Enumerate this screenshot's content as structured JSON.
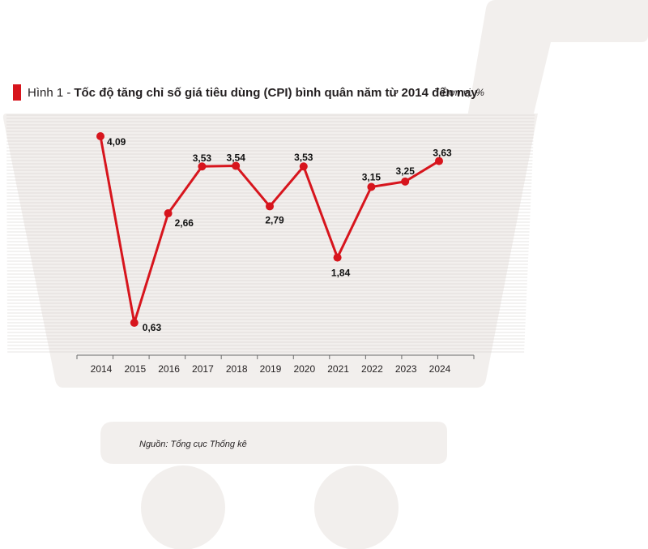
{
  "header": {
    "figure_label": "Hình 1 -",
    "title": "Tốc độ tăng chỉ số giá tiêu dùng (CPI) bình quân năm từ 2014 đến nay",
    "unit": "Đơn vị: %"
  },
  "source": "Nguồn: Tổng cục Thống kê",
  "colors": {
    "line": "#d7151d",
    "cart": "#f2efed",
    "grid": "#cfcac7",
    "axis": "#6b6b6b"
  },
  "chart_data": {
    "type": "line",
    "title": "Tốc độ tăng chỉ số giá tiêu dùng (CPI) bình quân năm từ 2014 đến nay",
    "xlabel": "",
    "ylabel": "",
    "categories": [
      "2014",
      "2015",
      "2016",
      "2017",
      "2018",
      "2019",
      "2020",
      "2021",
      "2022",
      "2023",
      "2024"
    ],
    "series": [
      {
        "values": [
          4.09,
          0.63,
          2.66,
          3.53,
          3.54,
          2.79,
          3.53,
          1.84,
          3.15,
          3.25,
          3.63
        ],
        "labels": [
          "4,09",
          "0,63",
          "2,66",
          "3,53",
          "3,54",
          "2,79",
          "3,53",
          "1,84",
          "3,15",
          "3,25",
          "3,63"
        ]
      }
    ],
    "grid": true,
    "legend": "none"
  }
}
